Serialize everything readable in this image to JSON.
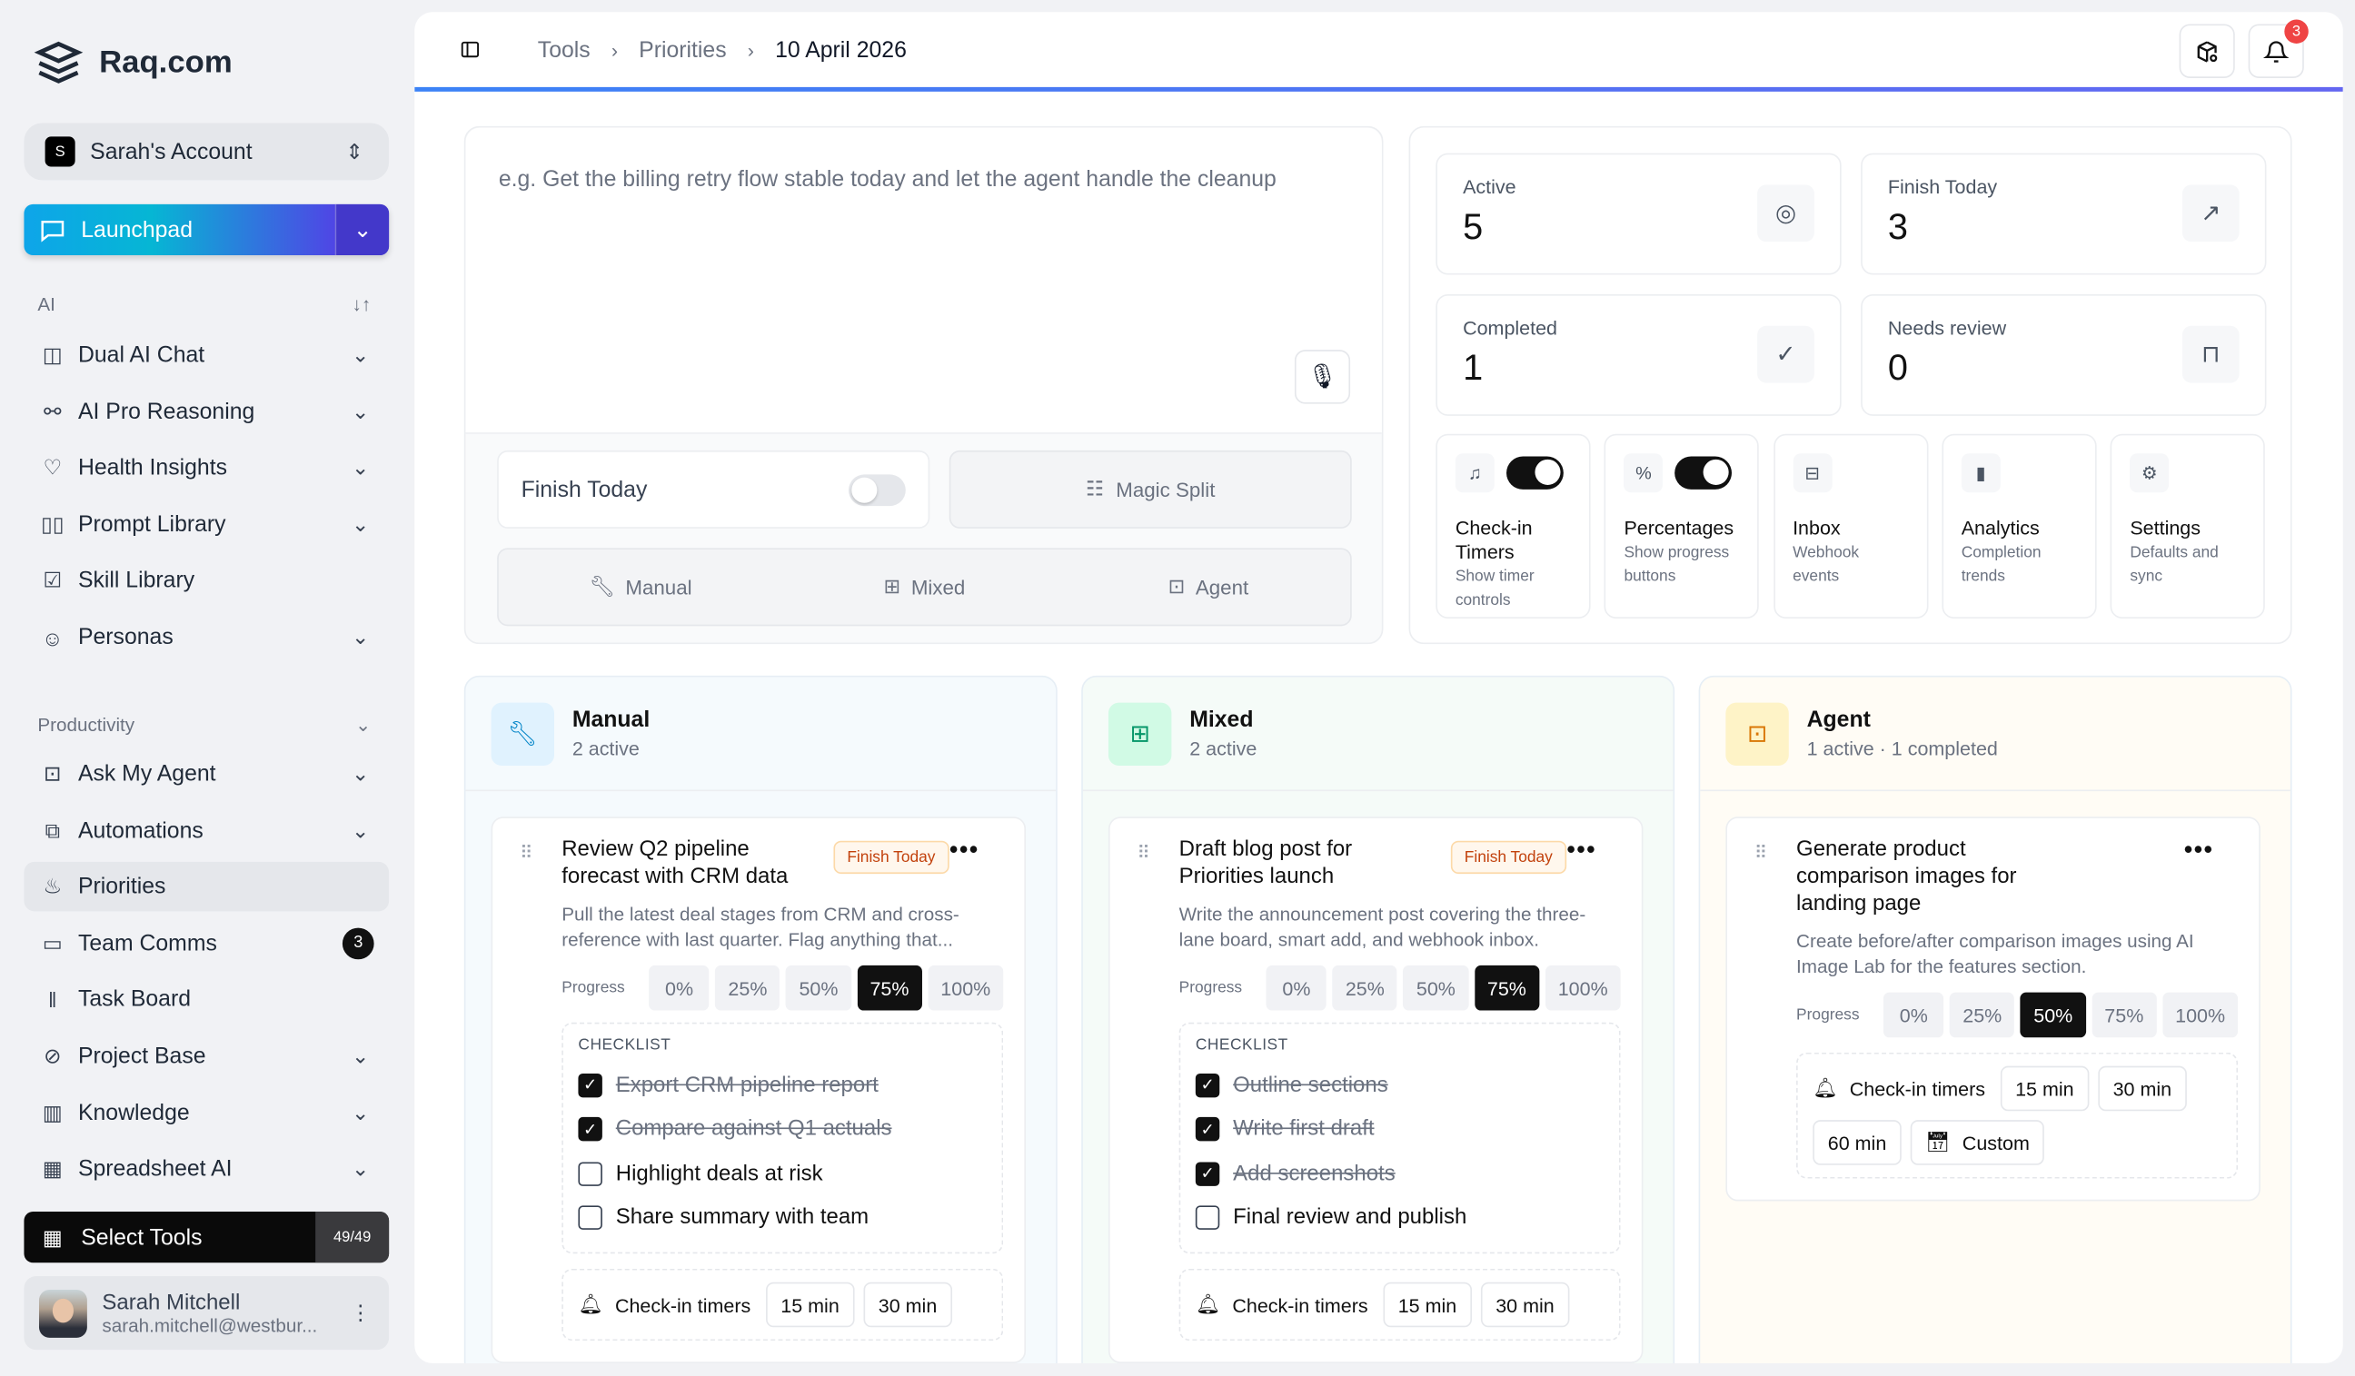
{
  "brand": {
    "name": "Raq.com"
  },
  "account": {
    "initial": "S",
    "name": "Sarah's Account"
  },
  "launchpad": {
    "label": "Launchpad"
  },
  "sidebar": {
    "ai_label": "AI",
    "ai_items": [
      {
        "label": "Dual AI Chat",
        "icon": "columns-icon",
        "chevron": true
      },
      {
        "label": "AI Pro Reasoning",
        "icon": "workflow-icon",
        "chevron": true
      },
      {
        "label": "Health Insights",
        "icon": "heart-pulse-icon",
        "chevron": true
      },
      {
        "label": "Prompt Library",
        "icon": "book-open-icon",
        "chevron": true
      },
      {
        "label": "Skill Library",
        "icon": "book-check-icon",
        "chevron": false
      },
      {
        "label": "Personas",
        "icon": "masks-icon",
        "chevron": true
      }
    ],
    "productivity_label": "Productivity",
    "productivity_items": [
      {
        "label": "Ask My Agent",
        "icon": "bot-icon",
        "chevron": true
      },
      {
        "label": "Automations",
        "icon": "automation-icon",
        "chevron": true
      },
      {
        "label": "Priorities",
        "icon": "flame-icon",
        "chevron": false,
        "active": true
      },
      {
        "label": "Team Comms",
        "icon": "messages-icon",
        "chevron": false,
        "badge": "3"
      },
      {
        "label": "Task Board",
        "icon": "kanban-icon",
        "chevron": false
      },
      {
        "label": "Project Base",
        "icon": "compass-icon",
        "chevron": true
      },
      {
        "label": "Knowledge",
        "icon": "library-icon",
        "chevron": true
      },
      {
        "label": "Spreadsheet AI",
        "icon": "table-icon",
        "chevron": true
      }
    ],
    "select_tools": {
      "label": "Select Tools",
      "count": "49/49"
    },
    "user": {
      "name": "Sarah Mitchell",
      "email": "sarah.mitchell@westbur..."
    }
  },
  "header": {
    "breadcrumb": [
      "Tools",
      "Priorities",
      "10 April 2026"
    ],
    "notifications": "3"
  },
  "composer": {
    "placeholder": "e.g. Get the billing retry flow stable today and let the agent handle the cleanup",
    "finish_today": "Finish Today",
    "finish_today_on": false,
    "magic_split": "Magic Split",
    "modes": [
      "Manual",
      "Mixed",
      "Agent"
    ]
  },
  "stats": [
    {
      "label": "Active",
      "value": "5",
      "icon": "target-icon"
    },
    {
      "label": "Finish Today",
      "value": "3",
      "icon": "arrow-up-right-icon"
    },
    {
      "label": "Completed",
      "value": "1",
      "icon": "check-circle-icon"
    },
    {
      "label": "Needs review",
      "value": "0",
      "icon": "inbox-icon"
    }
  ],
  "features": [
    {
      "name": "Check-in Timers",
      "desc": "Show timer controls",
      "icon": "bell-icon",
      "toggle": true
    },
    {
      "name": "Percentages",
      "desc": "Show progress buttons",
      "icon": "percent-icon",
      "toggle": true
    },
    {
      "name": "Inbox",
      "desc": "Webhook events",
      "icon": "webhook-icon"
    },
    {
      "name": "Analytics",
      "desc": "Completion trends",
      "icon": "bar-chart-icon"
    },
    {
      "name": "Settings",
      "desc": "Defaults and sync",
      "icon": "gear-icon"
    }
  ],
  "progress_label": "Progress",
  "progress_options": [
    "0%",
    "25%",
    "50%",
    "75%",
    "100%"
  ],
  "checklist_label": "CHECKLIST",
  "timers_label": "Check-in timers",
  "colors": {
    "manual": "#0284c7",
    "mixed": "#059669",
    "agent": "#d97706"
  },
  "lanes": [
    {
      "name": "Manual",
      "sub": "2 active",
      "icon": "wrench-icon",
      "task": {
        "title": "Review Q2 pipeline forecast with CRM data",
        "tag": "Finish Today",
        "desc": "Pull the latest deal stages from CRM and cross-reference with last quarter. Flag anything that...",
        "progress": "75%",
        "checklist": [
          {
            "text": "Export CRM pipeline report",
            "done": true
          },
          {
            "text": "Compare against Q1 actuals",
            "done": true
          },
          {
            "text": "Highlight deals at risk",
            "done": false
          },
          {
            "text": "Share summary with team",
            "done": false
          }
        ],
        "timers": [
          "15 min",
          "30 min"
        ]
      }
    },
    {
      "name": "Mixed",
      "sub": "2 active",
      "icon": "blocks-icon",
      "task": {
        "title": "Draft blog post for Priorities launch",
        "tag": "Finish Today",
        "desc": "Write the announcement post covering the three-lane board, smart add, and webhook inbox.",
        "progress": "75%",
        "checklist": [
          {
            "text": "Outline sections",
            "done": true
          },
          {
            "text": "Write first draft",
            "done": true
          },
          {
            "text": "Add screenshots",
            "done": true
          },
          {
            "text": "Final review and publish",
            "done": false
          }
        ],
        "timers": [
          "15 min",
          "30 min"
        ]
      }
    },
    {
      "name": "Agent",
      "sub": "1 active · 1 completed",
      "icon": "bot-icon",
      "task": {
        "title": "Generate product comparison images for landing page",
        "tag": "",
        "desc": "Create before/after comparison images using AI Image Lab for the features section.",
        "progress": "50%",
        "checklist": [],
        "timers": [
          "15 min",
          "30 min",
          "60 min"
        ],
        "custom": "Custom"
      }
    }
  ]
}
